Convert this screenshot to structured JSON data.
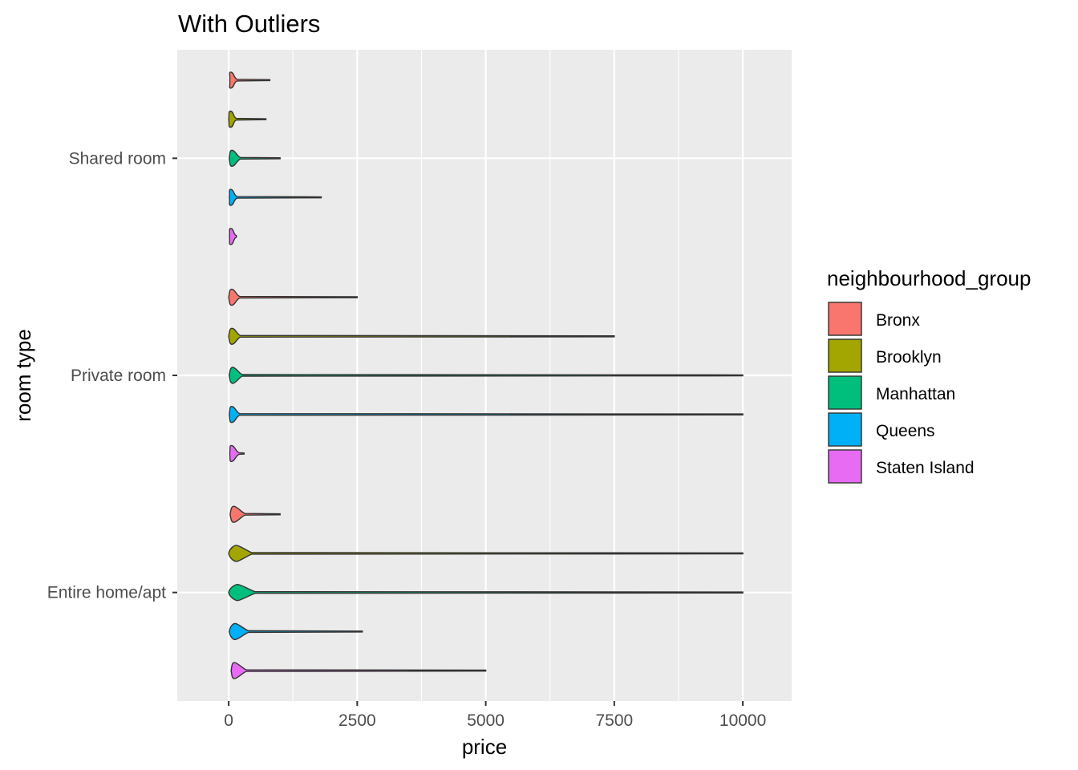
{
  "chart_data": {
    "type": "violin",
    "title": "With Outliers",
    "xlabel": "price",
    "ylabel": "room type",
    "xlim": [
      -1000,
      10950
    ],
    "x_ticks": [
      0,
      2500,
      5000,
      7500,
      10000
    ],
    "x_tick_labels": [
      "0",
      "2500",
      "5000",
      "7500",
      "10000"
    ],
    "categories": [
      "Entire home/apt",
      "Private room",
      "Shared room"
    ],
    "legend": {
      "title": "neighbourhood_group",
      "placement": "right",
      "entries": [
        "Bronx",
        "Brooklyn",
        "Manhattan",
        "Queens",
        "Staten Island"
      ]
    },
    "colors": {
      "Bronx": "#F8766D",
      "Brooklyn": "#A3A500",
      "Manhattan": "#00BF7D",
      "Queens": "#00B0F6",
      "Staten Island": "#E76BF3"
    },
    "series": [
      {
        "name": "Bronx",
        "values": [
          {
            "category": "Entire home/apt",
            "min": 28,
            "peak": 100,
            "max": 1000
          },
          {
            "category": "Private room",
            "min": 0,
            "peak": 60,
            "max": 2500
          },
          {
            "category": "Shared room",
            "min": 20,
            "peak": 40,
            "max": 800
          }
        ]
      },
      {
        "name": "Brooklyn",
        "values": [
          {
            "category": "Entire home/apt",
            "min": 0,
            "peak": 150,
            "max": 10000
          },
          {
            "category": "Private room",
            "min": 0,
            "peak": 65,
            "max": 7500
          },
          {
            "category": "Shared room",
            "min": 0,
            "peak": 35,
            "max": 725
          }
        ]
      },
      {
        "name": "Manhattan",
        "values": [
          {
            "category": "Entire home/apt",
            "min": 0,
            "peak": 175,
            "max": 10000
          },
          {
            "category": "Private room",
            "min": 10,
            "peak": 80,
            "max": 9999
          },
          {
            "category": "Shared room",
            "min": 10,
            "peak": 65,
            "max": 1000
          }
        ]
      },
      {
        "name": "Queens",
        "values": [
          {
            "category": "Entire home/apt",
            "min": 10,
            "peak": 125,
            "max": 2600
          },
          {
            "category": "Private room",
            "min": 10,
            "peak": 60,
            "max": 10000
          },
          {
            "category": "Shared room",
            "min": 11,
            "peak": 40,
            "max": 1800
          }
        ]
      },
      {
        "name": "Staten Island",
        "values": [
          {
            "category": "Entire home/apt",
            "min": 48,
            "peak": 110,
            "max": 5000
          },
          {
            "category": "Private room",
            "min": 20,
            "peak": 55,
            "max": 300
          },
          {
            "category": "Shared room",
            "min": 13,
            "peak": 40,
            "max": 150
          }
        ]
      }
    ]
  }
}
